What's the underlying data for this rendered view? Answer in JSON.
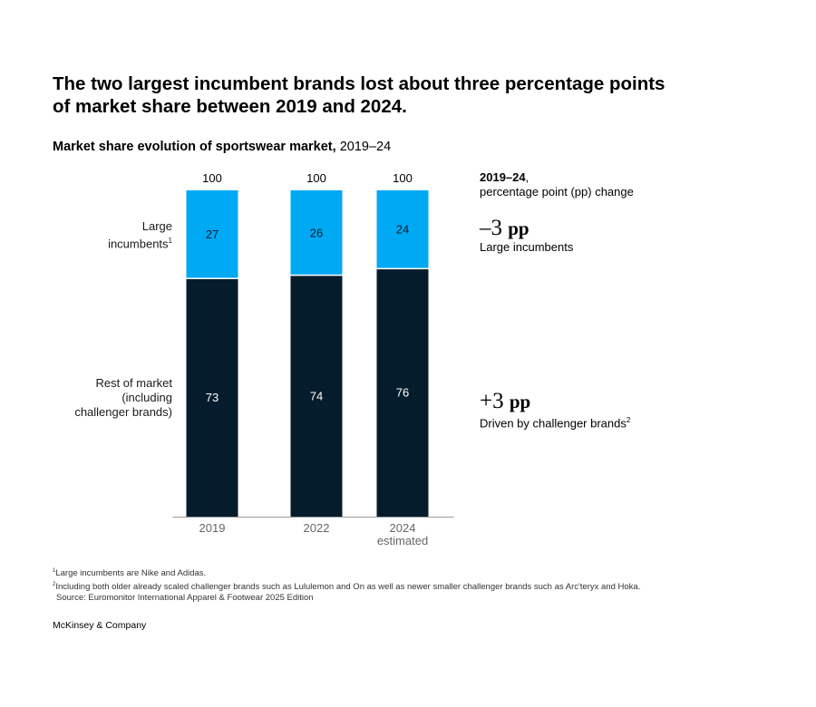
{
  "headline": "The two largest incumbent brands lost about three percentage points of market share between 2019 and 2024.",
  "subtitle": {
    "bold": "Market share evolution of sportswear market,",
    "range": "2019–24"
  },
  "chart_data": {
    "type": "bar",
    "stacked": true,
    "categories": [
      {
        "label": "2019",
        "sublabel": ""
      },
      {
        "label": "2022",
        "sublabel": ""
      },
      {
        "label": "2024",
        "sublabel": "estimated"
      }
    ],
    "totals": [
      "100",
      "100",
      "100"
    ],
    "series": [
      {
        "name": "Rest of market (including challenger brands)",
        "values": [
          73,
          74,
          76
        ],
        "color": "#051c2c"
      },
      {
        "name": "Large incumbents",
        "values": [
          27,
          26,
          24
        ],
        "color": "#00a9f4"
      }
    ],
    "ylim": [
      0,
      100
    ],
    "row_labels": {
      "incumbents_line1": "Large",
      "incumbents_line2": "incumbents",
      "incumbents_sup": "1",
      "rest_line1": "Rest of market",
      "rest_line2": "(including",
      "rest_line3": "challenger brands)"
    }
  },
  "side_panel": {
    "heading_bold": "2019–24",
    "heading_comma": ",",
    "heading_sub": "percentage point (pp) change",
    "incumbents_change": "–3",
    "incumbents_unit": "pp",
    "incumbents_desc": "Large incumbents",
    "rest_change": "+3",
    "rest_unit": "pp",
    "rest_desc": "Driven by challenger brands",
    "rest_desc_sup": "2"
  },
  "footnotes": {
    "note1_sup": "1",
    "note1": "Large incumbents are Nike and Adidas.",
    "note2_sup": "2",
    "note2": "Including both older already scaled challenger brands such as Lululemon and On as well as newer smaller challenger brands such as Arc'teryx and Hoka.",
    "source": "Source: Euromonitor International Apparel & Footwear 2025 Edition"
  },
  "brand": "McKinsey & Company",
  "colors": {
    "axis": "#9a9a9a",
    "label_on_dark": "#ffffff",
    "label_on_light": "#051c2c"
  }
}
